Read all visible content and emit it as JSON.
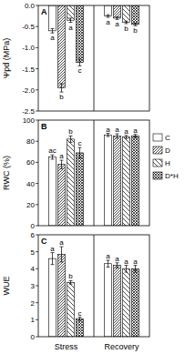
{
  "chart_data": [
    {
      "type": "bar",
      "title": "A",
      "y_label": "Ψpd (MPa)",
      "categories": [
        null,
        null
      ],
      "ylim": [
        -2.5,
        0
      ],
      "yticks": [
        {
          "value": 0,
          "label": "0.0"
        },
        -0.5,
        {
          "value": -1,
          "label": "-1.0"
        },
        -1.5,
        {
          "value": -2,
          "label": "-2.0"
        },
        -2.5
      ],
      "series": [
        {
          "color": "#ffffff",
          "values": [
            -0.6,
            -0.25
          ],
          "errors": [
            0.05,
            0.03
          ],
          "letters": [
            "a",
            "a"
          ]
        },
        {
          "color": "#ffffff",
          "values": [
            -1.95,
            -0.3
          ],
          "errors": [
            0.1,
            0.03
          ],
          "letters": [
            "b",
            "a"
          ]
        },
        {
          "color": "#ffffff",
          "values": [
            -0.35,
            -0.4
          ],
          "errors": [
            0.05,
            0.03
          ],
          "letters": [
            "a",
            "b"
          ]
        },
        {
          "color": "#ffffff",
          "values": [
            -1.35,
            -0.45
          ],
          "errors": [
            0.08,
            0.03
          ],
          "letters": [
            "c",
            "b"
          ]
        }
      ]
    },
    {
      "type": "bar",
      "title": "B",
      "y_label": "RWC (%)",
      "categories": [
        null,
        null
      ],
      "ylim": [
        0,
        100
      ],
      "yticks": [
        0,
        20,
        40,
        60,
        80,
        100
      ],
      "legend": "right",
      "series": [
        {
          "name": "C",
          "color": "#ffffff",
          "values": [
            65,
            86
          ],
          "errors": [
            2,
            1.5
          ],
          "letters": [
            "ac",
            "a"
          ]
        },
        {
          "name": "D",
          "color": "#ffffff",
          "values": [
            58,
            85
          ],
          "errors": [
            4,
            2
          ],
          "letters": [
            "a",
            "a"
          ]
        },
        {
          "name": "H",
          "color": "#ffffff",
          "values": [
            82,
            84
          ],
          "errors": [
            3,
            1.5
          ],
          "letters": [
            "b",
            "a"
          ]
        },
        {
          "name": "D*H",
          "color": "#ffffff",
          "values": [
            69,
            85
          ],
          "errors": [
            5,
            1.5
          ],
          "letters": [
            "c",
            "a"
          ]
        }
      ]
    },
    {
      "type": "bar",
      "title": "C",
      "y_label": "WUE",
      "categories": [
        "Stress",
        "Recovery"
      ],
      "ylim": [
        0,
        6
      ],
      "yticks": [
        0,
        1,
        2,
        3,
        4,
        5,
        6
      ],
      "series": [
        {
          "color": "#ffffff",
          "values": [
            4.6,
            4.3
          ],
          "errors": [
            0.35,
            0.2
          ],
          "letters": [
            "a",
            "a"
          ]
        },
        {
          "color": "#ffffff",
          "values": [
            4.85,
            4.2
          ],
          "errors": [
            0.45,
            0.15
          ],
          "letters": [
            "a",
            "a"
          ]
        },
        {
          "color": "#ffffff",
          "values": [
            3.2,
            4.0
          ],
          "errors": [
            0.1,
            0.2
          ],
          "letters": [
            "b",
            "a"
          ]
        },
        {
          "color": "#ffffff",
          "values": [
            1.05,
            4.0
          ],
          "errors": [
            0.1,
            0.2
          ],
          "letters": [
            "c",
            "a"
          ]
        }
      ]
    }
  ]
}
